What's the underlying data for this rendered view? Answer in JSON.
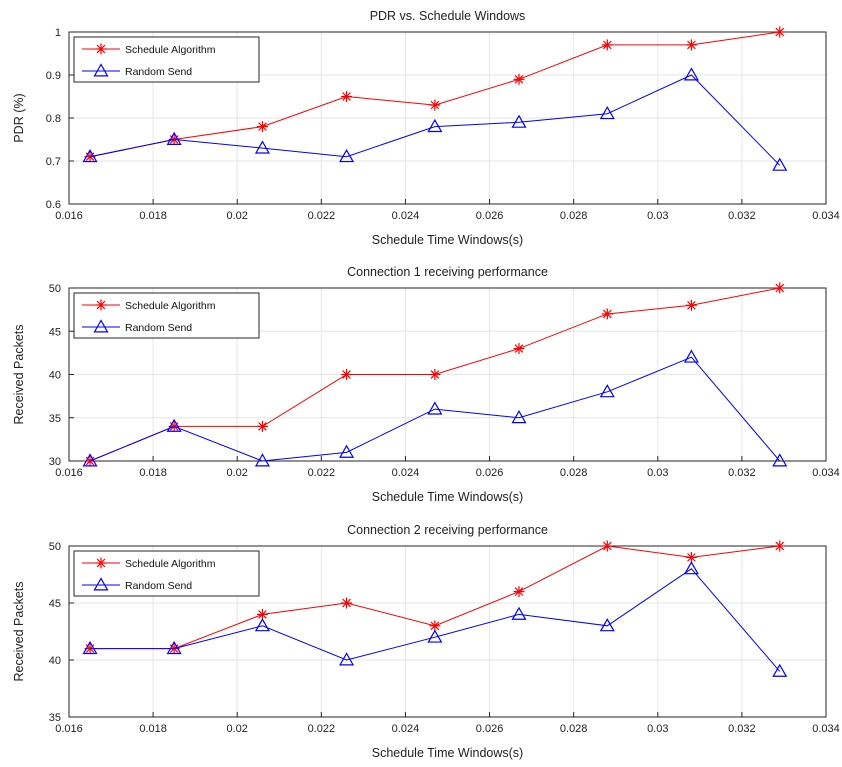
{
  "chart_data": [
    {
      "type": "line",
      "title": "PDR vs. Schedule Windows",
      "xlabel": "Schedule Time Windows(s)",
      "ylabel": "PDR (%)",
      "xlim": [
        0.016,
        0.034
      ],
      "ylim": [
        0.6,
        1.0
      ],
      "xticks": [
        "0.016",
        "0.018",
        "0.02",
        "0.022",
        "0.024",
        "0.026",
        "0.028",
        "0.03",
        "0.032",
        "0.034"
      ],
      "yticks": [
        "0.6",
        "0.7",
        "0.8",
        "0.9",
        "1"
      ],
      "grid": true,
      "legend_position": "top-left",
      "x": [
        0.0165,
        0.0185,
        0.0206,
        0.0226,
        0.0247,
        0.0267,
        0.0288,
        0.0308,
        0.0329
      ],
      "series": [
        {
          "name": "Schedule Algorithm",
          "color": "#ff0000",
          "marker": "asterisk",
          "values": [
            0.71,
            0.75,
            0.78,
            0.85,
            0.83,
            0.89,
            0.97,
            0.97,
            1.0
          ]
        },
        {
          "name": "Random Send",
          "color": "#0000ff",
          "marker": "triangle",
          "values": [
            0.71,
            0.75,
            0.73,
            0.71,
            0.78,
            0.79,
            0.81,
            0.9,
            0.69
          ]
        }
      ]
    },
    {
      "type": "line",
      "title": "Connection 1 receiving performance",
      "xlabel": "Schedule Time Windows(s)",
      "ylabel": "Received Packets",
      "xlim": [
        0.016,
        0.034
      ],
      "ylim": [
        30,
        50
      ],
      "xticks": [
        "0.016",
        "0.018",
        "0.02",
        "0.022",
        "0.024",
        "0.026",
        "0.028",
        "0.03",
        "0.032",
        "0.034"
      ],
      "yticks": [
        "30",
        "35",
        "40",
        "45",
        "50"
      ],
      "grid": true,
      "legend_position": "top-left",
      "x": [
        0.0165,
        0.0185,
        0.0206,
        0.0226,
        0.0247,
        0.0267,
        0.0288,
        0.0308,
        0.0329
      ],
      "series": [
        {
          "name": "Schedule Algorithm",
          "color": "#ff0000",
          "marker": "asterisk",
          "values": [
            30,
            34,
            34,
            40,
            40,
            43,
            47,
            48,
            50
          ]
        },
        {
          "name": "Random Send",
          "color": "#0000ff",
          "marker": "triangle",
          "values": [
            30,
            34,
            30,
            31,
            36,
            35,
            38,
            42,
            30
          ]
        }
      ]
    },
    {
      "type": "line",
      "title": "Connection 2 receiving performance",
      "xlabel": "Schedule Time Windows(s)",
      "ylabel": "Received Packets",
      "xlim": [
        0.016,
        0.034
      ],
      "ylim": [
        35,
        50
      ],
      "xticks": [
        "0.016",
        "0.018",
        "0.02",
        "0.022",
        "0.024",
        "0.026",
        "0.028",
        "0.03",
        "0.032",
        "0.034"
      ],
      "yticks": [
        "35",
        "40",
        "45",
        "50"
      ],
      "grid": true,
      "legend_position": "top-left",
      "x": [
        0.0165,
        0.0185,
        0.0206,
        0.0226,
        0.0247,
        0.0267,
        0.0288,
        0.0308,
        0.0329
      ],
      "series": [
        {
          "name": "Schedule Algorithm",
          "color": "#ff0000",
          "marker": "asterisk",
          "values": [
            41,
            41,
            44,
            45,
            43,
            46,
            50,
            49,
            50
          ]
        },
        {
          "name": "Random Send",
          "color": "#0000ff",
          "marker": "triangle",
          "values": [
            41,
            41,
            43,
            40,
            42,
            44,
            43,
            48,
            39
          ]
        }
      ]
    }
  ]
}
